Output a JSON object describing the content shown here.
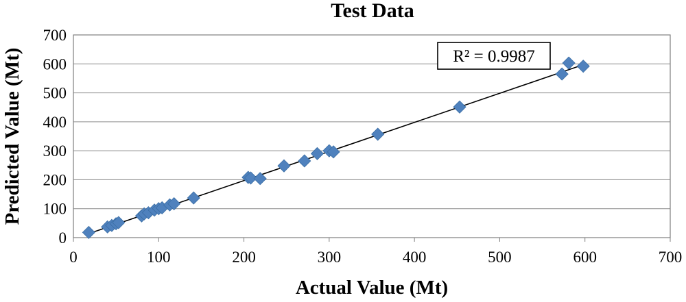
{
  "chart_data": {
    "type": "scatter",
    "title": "Test Data",
    "xlabel": "Actual Value (Mt)",
    "ylabel": "Predicted Value (Mt)",
    "xlim": [
      0,
      700
    ],
    "ylim": [
      0,
      700
    ],
    "xticks": [
      "0",
      "100",
      "200",
      "300",
      "400",
      "500",
      "600",
      "700"
    ],
    "yticks": [
      "0",
      "100",
      "200",
      "300",
      "400",
      "500",
      "600",
      "700"
    ],
    "grid": "horizontal",
    "marker_color": "#4f81bd",
    "trendline": {
      "type": "linear",
      "from": [
        18,
        14
      ],
      "to": [
        598,
        597
      ],
      "color": "#000000"
    },
    "annotation": "R² = 0.9987",
    "points": [
      [
        18,
        18
      ],
      [
        40,
        37
      ],
      [
        45,
        42
      ],
      [
        50,
        48
      ],
      [
        53,
        52
      ],
      [
        80,
        75
      ],
      [
        83,
        82
      ],
      [
        88,
        86
      ],
      [
        95,
        95
      ],
      [
        100,
        100
      ],
      [
        104,
        103
      ],
      [
        113,
        113
      ],
      [
        118,
        117
      ],
      [
        141,
        137
      ],
      [
        205,
        208
      ],
      [
        208,
        206
      ],
      [
        219,
        204
      ],
      [
        247,
        248
      ],
      [
        271,
        265
      ],
      [
        286,
        290
      ],
      [
        300,
        300
      ],
      [
        305,
        296
      ],
      [
        357,
        357
      ],
      [
        453,
        451
      ],
      [
        573,
        565
      ],
      [
        581,
        603
      ],
      [
        598,
        592
      ]
    ]
  }
}
